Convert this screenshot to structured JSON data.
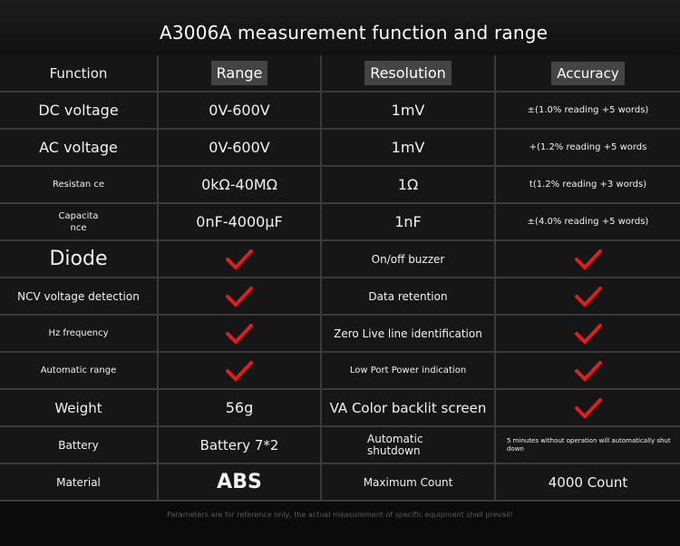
{
  "title": "A3006A measurement function and range",
  "header": {
    "function": "Function",
    "range": "Range",
    "resolution": "Resolution",
    "accuracy": "Accuracy"
  },
  "rows": [
    {
      "function": "DC voltage",
      "range": "0V-600V",
      "resolution": "1mV",
      "accuracy": "±(1.0% reading +5 words)"
    },
    {
      "function": "AC voltage",
      "range": "0V-600V",
      "resolution": "1mV",
      "accuracy": "+(1.2% reading +5 words"
    },
    {
      "function": "Resistan ce",
      "range": "0kΩ-40MΩ",
      "resolution": "1Ω",
      "accuracy": "t(1.2% reading +3 words)"
    },
    {
      "function": "Capacita nce",
      "range": "0nF-4000μF",
      "resolution": "1nF",
      "accuracy": "±(4.0% reading +5 words)"
    }
  ],
  "features": [
    {
      "left": "Diode",
      "right": "On/off buzzer"
    },
    {
      "left": "NCV voltage detection",
      "right": "Data retention"
    },
    {
      "left": "Hz frequency",
      "right": "Zero Live line identification"
    },
    {
      "left": "Automatic range",
      "right": "Low Port Power indication"
    }
  ],
  "weight": {
    "label": "Weight",
    "value": "56g",
    "right": "VA Color backlit screen"
  },
  "battery": {
    "label": "Battery",
    "value": "Battery 7*2",
    "right_label": "Automatic shutdown",
    "right_value": "5 minutes without operation will automatically shut down"
  },
  "material": {
    "label": "Material",
    "value": "ABS",
    "right_label": "Maximum Count",
    "right_value": "4000 Count"
  },
  "footer": "Parameters are for reference only, the actual measurement of specific equipment shall prevail!",
  "colors": {
    "check": "#e01e1e",
    "background": "#0b0b0b",
    "cell": "#161616",
    "border": "#3a3a3a"
  }
}
